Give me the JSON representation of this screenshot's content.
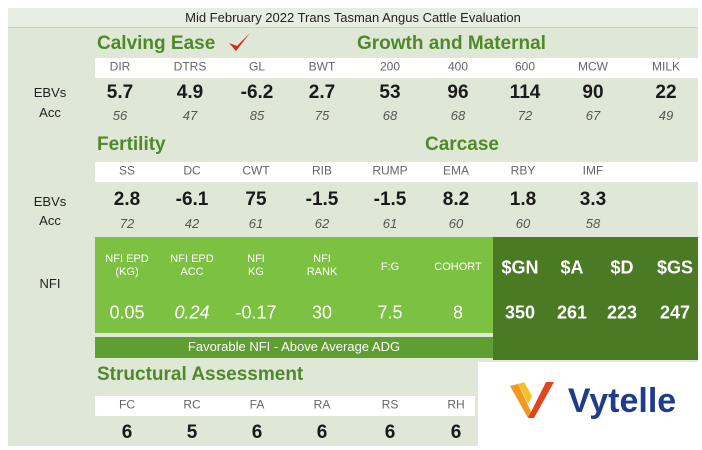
{
  "title": "Mid February 2022 Trans Tasman Angus Cattle Evaluation",
  "row_labels": [
    "EBVs",
    "Acc",
    "EBVs",
    "Acc",
    "NFI"
  ],
  "calving_growth": {
    "headings": [
      "Calving Ease",
      "Growth and Maternal"
    ],
    "columns": [
      "DIR",
      "DTRS",
      "GL",
      "BWT",
      "200",
      "400",
      "600",
      "MCW",
      "MILK"
    ],
    "ebvs": [
      5.7,
      4.9,
      -6.2,
      2.7,
      53,
      96,
      114,
      90,
      22
    ],
    "acc": [
      56,
      47,
      85,
      75,
      68,
      68,
      72,
      67,
      49
    ]
  },
  "fertility_carcase": {
    "headings": [
      "Fertility",
      "Carcase"
    ],
    "columns": [
      "SS",
      "DC",
      "CWT",
      "RIB",
      "RUMP",
      "EMA",
      "RBY",
      "IMF"
    ],
    "ebvs": [
      2.8,
      -6.1,
      75,
      -1.5,
      -1.5,
      8.2,
      1.8,
      3.3
    ],
    "acc": [
      72,
      42,
      61,
      62,
      61,
      60,
      60,
      58
    ]
  },
  "nfi": {
    "columns": [
      [
        "NFI EPD",
        "(KG)"
      ],
      [
        "NFI EPD",
        "ACC"
      ],
      [
        "NFI",
        "KG"
      ],
      [
        "NFI",
        "RANK"
      ],
      [
        "F:G"
      ],
      [
        "COHORT"
      ]
    ],
    "values": [
      0.05,
      0.24,
      -0.17,
      30,
      7.5,
      8
    ],
    "note": "Favorable NFI - Above Average ADG"
  },
  "indexes": {
    "columns": [
      "$GN",
      "$A",
      "$D",
      "$GS"
    ],
    "values": [
      350,
      261,
      223,
      247
    ]
  },
  "structural": {
    "heading": "Structural Assessment",
    "columns": [
      "FC",
      "RC",
      "FA",
      "RA",
      "RS",
      "RH"
    ],
    "values": [
      6,
      5,
      6,
      6,
      6,
      6
    ]
  },
  "logo": "Vytelle"
}
